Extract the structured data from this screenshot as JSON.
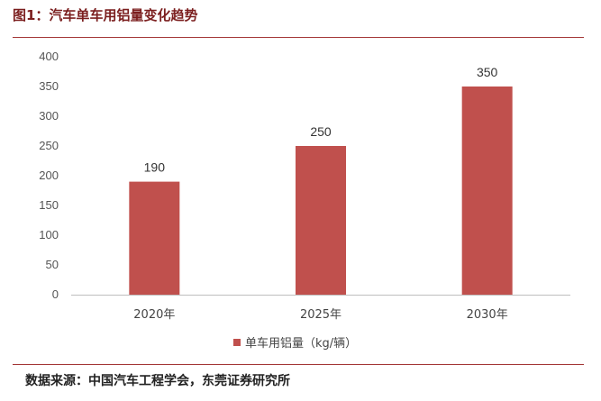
{
  "figure": {
    "title": "图1：汽车单车用铝量变化趋势",
    "source": "数据来源：中国汽车工程学会，东莞证券研究所"
  },
  "chart_data": {
    "type": "bar",
    "categories": [
      "2020年",
      "2025年",
      "2030年"
    ],
    "series": [
      {
        "name": "单车用铝量（kg/辆）",
        "values": [
          190,
          250,
          350
        ],
        "color": "#c0504d"
      }
    ],
    "ylim": [
      0,
      400
    ],
    "yticks": [
      0,
      50,
      100,
      150,
      200,
      250,
      300,
      350,
      400
    ],
    "data_labels": true,
    "grid": false,
    "legend_position": "bottom"
  }
}
